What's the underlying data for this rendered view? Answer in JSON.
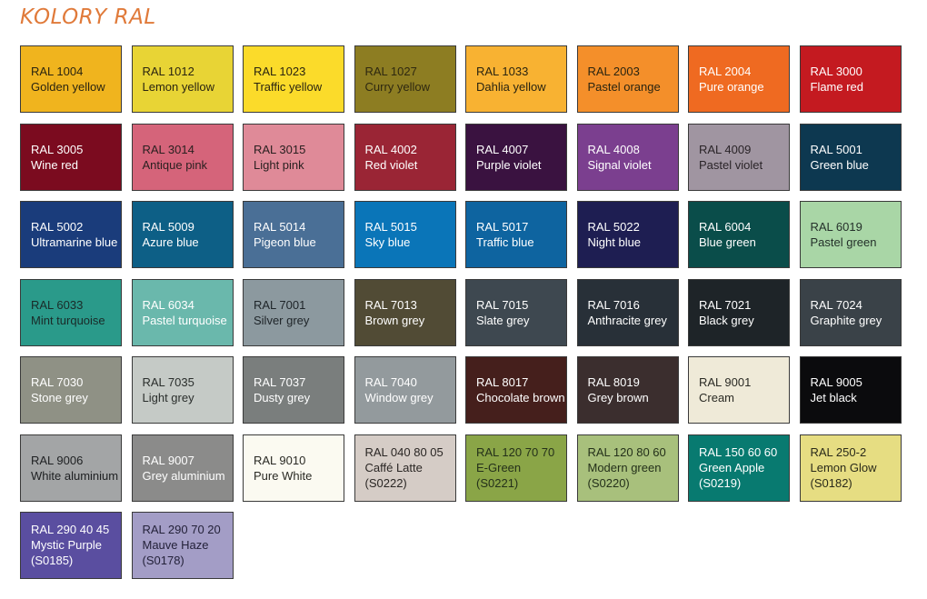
{
  "title": "KOLORY RAL",
  "swatches": [
    {
      "code": "RAL 1004",
      "name": "Golden yellow",
      "color": "#f0b41e",
      "text": "#2a2410"
    },
    {
      "code": "RAL 1012",
      "name": "Lemon yellow",
      "color": "#e8d435",
      "text": "#2a2410"
    },
    {
      "code": "RAL 1023",
      "name": "Traffic yellow",
      "color": "#fbdb2a",
      "text": "#2a2410"
    },
    {
      "code": "RAL 1027",
      "name": "Curry yellow",
      "color": "#8d7d22",
      "text": "#2e2810"
    },
    {
      "code": "RAL 1033",
      "name": "Dahlia yellow",
      "color": "#f8b232",
      "text": "#2a2410"
    },
    {
      "code": "RAL 2003",
      "name": "Pastel orange",
      "color": "#f48f2a",
      "text": "#2a2410"
    },
    {
      "code": "RAL 2004",
      "name": "Pure orange",
      "color": "#ef6a21",
      "text": "#ffffff"
    },
    {
      "code": "RAL 3000",
      "name": "Flame red",
      "color": "#c41a20",
      "text": "#ffffff"
    },
    {
      "code": "RAL 3005",
      "name": "Wine red",
      "color": "#7b0b1f",
      "text": "#ffffff"
    },
    {
      "code": "RAL 3014",
      "name": "Antique pink",
      "color": "#d5647a",
      "text": "#2a2020"
    },
    {
      "code": "RAL 3015",
      "name": "Light pink",
      "color": "#df8a98",
      "text": "#2a2020"
    },
    {
      "code": "RAL 4002",
      "name": "Red violet",
      "color": "#9a2535",
      "text": "#ffffff"
    },
    {
      "code": "RAL 4007",
      "name": "Purple violet",
      "color": "#3a1240",
      "text": "#ffffff"
    },
    {
      "code": "RAL 4008",
      "name": "Signal violet",
      "color": "#7b3f8f",
      "text": "#ffffff"
    },
    {
      "code": "RAL 4009",
      "name": "Pastel violet",
      "color": "#a095a1",
      "text": "#2a2428"
    },
    {
      "code": "RAL 5001",
      "name": "Green blue",
      "color": "#0d3850",
      "text": "#ffffff"
    },
    {
      "code": "RAL 5002",
      "name": "Ultramarine blue",
      "color": "#1a3c7b",
      "text": "#ffffff"
    },
    {
      "code": "RAL 5009",
      "name": "Azure blue",
      "color": "#0d5f86",
      "text": "#ffffff"
    },
    {
      "code": "RAL 5014",
      "name": "Pigeon blue",
      "color": "#4a6f96",
      "text": "#ffffff"
    },
    {
      "code": "RAL 5015",
      "name": "Sky blue",
      "color": "#0a75b8",
      "text": "#ffffff"
    },
    {
      "code": "RAL 5017",
      "name": "Traffic blue",
      "color": "#0e64a0",
      "text": "#ffffff"
    },
    {
      "code": "RAL 5022",
      "name": "Night blue",
      "color": "#1e1e52",
      "text": "#ffffff"
    },
    {
      "code": "RAL 6004",
      "name": "Blue green",
      "color": "#0a4d4a",
      "text": "#ffffff"
    },
    {
      "code": "RAL 6019",
      "name": "Pastel green",
      "color": "#a9d6a6",
      "text": "#24302a"
    },
    {
      "code": "RAL 6033",
      "name": "Mint turquoise",
      "color": "#2a9a8a",
      "text": "#1a2a28"
    },
    {
      "code": "RAL 6034",
      "name": "Pastel turquoise",
      "color": "#6ab8ac",
      "text": "#ffffff"
    },
    {
      "code": "RAL 7001",
      "name": "Silver grey",
      "color": "#8c999f",
      "text": "#1e2428"
    },
    {
      "code": "RAL 7013",
      "name": "Brown grey",
      "color": "#514b35",
      "text": "#ffffff"
    },
    {
      "code": "RAL 7015",
      "name": "Slate grey",
      "color": "#3e4850",
      "text": "#ffffff"
    },
    {
      "code": "RAL 7016",
      "name": "Anthracite grey",
      "color": "#283038",
      "text": "#ffffff"
    },
    {
      "code": "RAL 7021",
      "name": "Black grey",
      "color": "#1e2428",
      "text": "#ffffff"
    },
    {
      "code": "RAL 7024",
      "name": "Graphite grey",
      "color": "#3a4248",
      "text": "#ffffff"
    },
    {
      "code": "RAL 7030",
      "name": "Stone grey",
      "color": "#8f9185",
      "text": "#ffffff"
    },
    {
      "code": "RAL 7035",
      "name": "Light grey",
      "color": "#c5cac6",
      "text": "#2a2e2c"
    },
    {
      "code": "RAL 7037",
      "name": "Dusty grey",
      "color": "#7a7e7d",
      "text": "#ffffff"
    },
    {
      "code": "RAL 7040",
      "name": "Window grey",
      "color": "#939a9d",
      "text": "#ffffff"
    },
    {
      "code": "RAL 8017",
      "name": "Chocolate brown",
      "color": "#451f1c",
      "text": "#ffffff"
    },
    {
      "code": "RAL 8019",
      "name": "Grey brown",
      "color": "#3b2e2e",
      "text": "#ffffff"
    },
    {
      "code": "RAL 9001",
      "name": "Cream",
      "color": "#efead8",
      "text": "#2a2a24"
    },
    {
      "code": "RAL 9005",
      "name": "Jet black",
      "color": "#0b0b0d",
      "text": "#ffffff"
    },
    {
      "code": "RAL 9006",
      "name": "White aluminium",
      "color": "#a3a5a6",
      "text": "#1e2022"
    },
    {
      "code": "RAL 9007",
      "name": "Grey aluminium",
      "color": "#8b8b8a",
      "text": "#ffffff"
    },
    {
      "code": "RAL 9010",
      "name": "Pure White",
      "color": "#fbfaf1",
      "text": "#2a2a24"
    },
    {
      "code": "RAL 040 80 05",
      "name": "Caffé Latte",
      "extra": "(S0222)",
      "color": "#d5ccc6",
      "text": "#2a2624"
    },
    {
      "code": "RAL 120 70 70",
      "name": "E-Green",
      "extra": "(S0221)",
      "color": "#8aa547",
      "text": "#24301a"
    },
    {
      "code": "RAL 120 80 60",
      "name": "Modern green",
      "extra": "(S0220)",
      "color": "#a8c07c",
      "text": "#24301a"
    },
    {
      "code": "RAL 150 60 60",
      "name": "Green Apple",
      "extra": "(S0219)",
      "color": "#087a70",
      "text": "#ffffff"
    },
    {
      "code": "RAL 250-2",
      "name": "Lemon Glow",
      "extra": "(S0182)",
      "color": "#e6dd82",
      "text": "#2a2a1a"
    },
    {
      "code": "RAL 290 40 45",
      "name": "Mystic Purple",
      "extra": "(S0185)",
      "color": "#5a4ea0",
      "text": "#ffffff"
    },
    {
      "code": "RAL 290 70 20",
      "name": "Mauve Haze",
      "extra": "(S0178)",
      "color": "#a39dc6",
      "text": "#24223a"
    }
  ]
}
